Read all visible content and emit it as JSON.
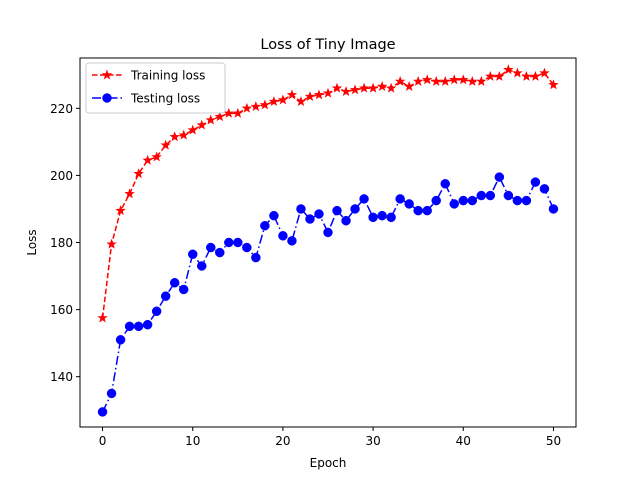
{
  "chart_data": {
    "type": "line",
    "title": "Loss of Tiny Image",
    "xlabel": "Epoch",
    "ylabel": "Loss",
    "xlim": [
      -2.5,
      52.5
    ],
    "ylim": [
      125,
      235
    ],
    "xticks": [
      0,
      10,
      20,
      30,
      40,
      50
    ],
    "yticks": [
      140,
      160,
      180,
      200,
      220
    ],
    "grid": false,
    "legend_position": "top-left",
    "x": [
      0,
      1,
      2,
      3,
      4,
      5,
      6,
      7,
      8,
      9,
      10,
      11,
      12,
      13,
      14,
      15,
      16,
      17,
      18,
      19,
      20,
      21,
      22,
      23,
      24,
      25,
      26,
      27,
      28,
      29,
      30,
      31,
      32,
      33,
      34,
      35,
      36,
      37,
      38,
      39,
      40,
      41,
      42,
      43,
      44,
      45,
      46,
      47,
      48,
      49,
      50
    ],
    "series": [
      {
        "name": "Training loss",
        "color": "#ff0000",
        "linestyle": "dashed",
        "marker": "star",
        "values": [
          157.5,
          179.5,
          189.5,
          194.5,
          200.5,
          204.5,
          205.5,
          209,
          211.5,
          212,
          213.5,
          215,
          216.5,
          217.5,
          218.5,
          218.5,
          220,
          220.5,
          221,
          222,
          222.5,
          224,
          222,
          223.5,
          224,
          224.5,
          226,
          225,
          225.5,
          226,
          226,
          226.5,
          226,
          228,
          226.5,
          228,
          228.5,
          228,
          228,
          228.5,
          228.5,
          228,
          228,
          229.5,
          229.5,
          231.5,
          230.5,
          229.5,
          229.5,
          230.5,
          227
        ]
      },
      {
        "name": "Testing loss",
        "color": "#0000ff",
        "linestyle": "dashdot",
        "marker": "circle",
        "values": [
          129.5,
          135,
          151,
          155,
          155,
          155.5,
          159.5,
          164,
          168,
          166,
          176.5,
          173,
          178.5,
          177,
          180,
          180,
          178.5,
          175.5,
          185,
          188,
          182,
          180.5,
          190,
          187,
          188.5,
          183,
          189.5,
          186.5,
          190,
          193,
          187.5,
          188,
          187.5,
          193,
          191.5,
          189.5,
          189.5,
          192.5,
          197.5,
          191.5,
          192.5,
          192.5,
          194,
          194,
          199.5,
          194,
          192.5,
          192.5,
          198,
          196,
          190
        ]
      }
    ]
  }
}
